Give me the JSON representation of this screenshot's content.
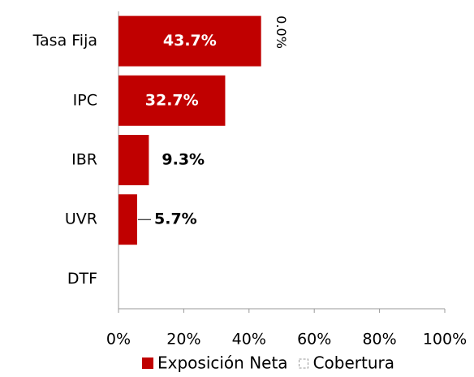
{
  "chart_data": {
    "type": "bar",
    "orientation": "horizontal",
    "stacked": true,
    "categories": [
      "Tasa Fija",
      "IPC",
      "IBR",
      "UVR",
      "DTF"
    ],
    "series": [
      {
        "name": "Exposición Neta",
        "color": "#c00000",
        "values": [
          43.7,
          32.7,
          9.3,
          5.7,
          null
        ],
        "value_labels": [
          "43.7%",
          "32.7%",
          "9.3%",
          "5.7%",
          null
        ]
      },
      {
        "name": "Cobertura",
        "color": "#ffffff",
        "values": [
          0,
          null,
          null,
          null,
          null
        ],
        "value_labels": [
          "0.0%",
          null,
          null,
          null,
          null
        ]
      }
    ],
    "xlim": [
      0,
      100
    ],
    "xticks": [
      {
        "value": 0,
        "label": "0%"
      },
      {
        "value": 20,
        "label": "20%"
      },
      {
        "value": 40,
        "label": "40%"
      },
      {
        "value": 60,
        "label": "60%"
      },
      {
        "value": 80,
        "label": "80%"
      },
      {
        "value": 100,
        "label": "100%"
      }
    ],
    "legend": "bottom"
  }
}
